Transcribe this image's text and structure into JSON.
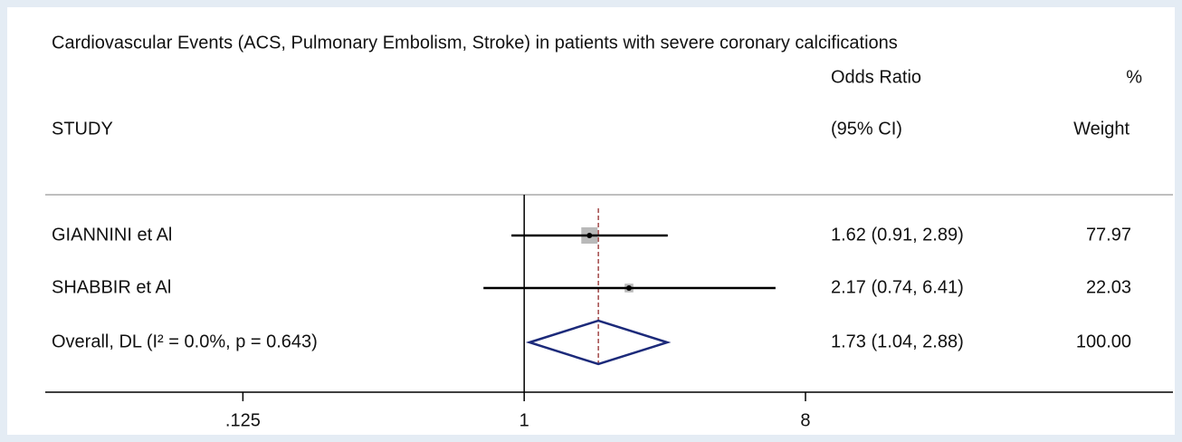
{
  "chart_data": {
    "type": "forest",
    "title": "Cardiovascular Events (ACS, Pulmonary Embolism, Stroke) in patients with severe coronary calcifications",
    "study_header": "STUDY",
    "estimate_header": [
      "Odds Ratio",
      "(95% CI)"
    ],
    "weight_header": [
      "%",
      "Weight"
    ],
    "categories": [
      "GIANNINI et Al",
      "SHABBIR et Al"
    ],
    "estimates": [
      1.62,
      2.17
    ],
    "lower": [
      0.91,
      0.74
    ],
    "upper": [
      2.89,
      6.41
    ],
    "estimate_labels": [
      "1.62 (0.91, 2.89)",
      "2.17 (0.74, 6.41)"
    ],
    "weights": [
      77.97,
      22.03
    ],
    "overall": {
      "label": "Overall, DL (I² = 0.0%, p = 0.643)",
      "estimate": 1.73,
      "lower": 1.04,
      "upper": 2.88,
      "estimate_label": "1.73 (1.04, 2.88)",
      "weight": 100,
      "weight_label": "100.00"
    },
    "null_value": 1,
    "xscale": "log",
    "xlim": [
      0.029,
      121
    ],
    "xticks": [
      {
        "value": 0.125,
        "label": ".125"
      },
      1,
      8
    ],
    "box_color": "#b9b9b9",
    "diamond_color": "#1c2a7a",
    "overall_line_color": "#8b1a1a"
  }
}
